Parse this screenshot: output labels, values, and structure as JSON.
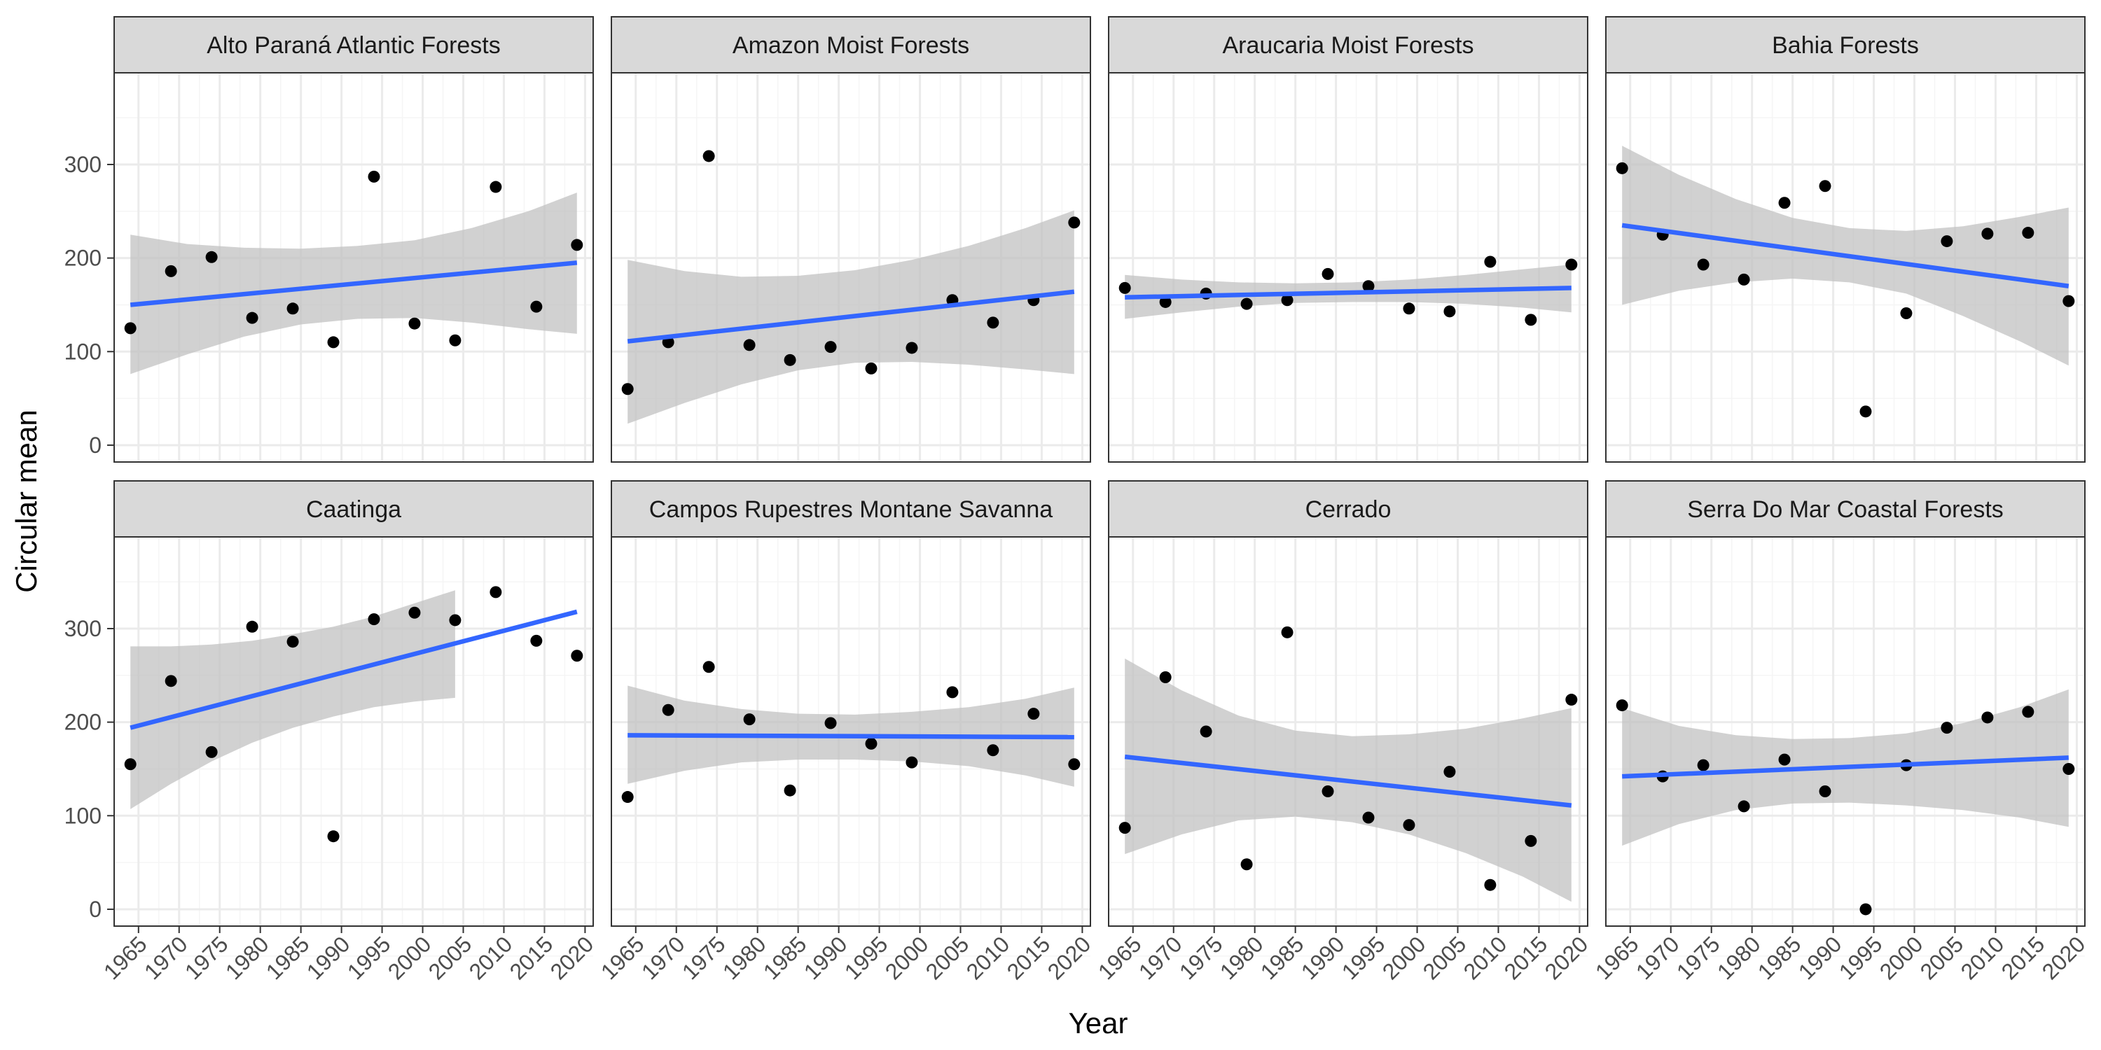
{
  "chart_data": {
    "type": "scatter",
    "xlabel": "Year",
    "ylabel": "Circular mean",
    "xlim": [
      1962,
      2021
    ],
    "ylim": [
      -18,
      398
    ],
    "x_ticks": [
      1965,
      1970,
      1975,
      1980,
      1985,
      1990,
      1995,
      2000,
      2005,
      2010,
      2015,
      2020
    ],
    "y_ticks": [
      0,
      100,
      200,
      300
    ],
    "layout": "facet-wrap 4 columns x 2 rows, shared axes",
    "colors": {
      "points": "#000000",
      "trend_line": "#3366FF",
      "ribbon": "#bfbfbf",
      "strip": "#d9d9d9",
      "grid_major": "#ebebeb",
      "grid_minor": "#f5f5f5",
      "panel_border": "#333333"
    },
    "panels": [
      {
        "name": "Alto Paraná Atlantic Forests",
        "points": [
          [
            1964,
            125
          ],
          [
            1969,
            186
          ],
          [
            1974,
            201
          ],
          [
            1979,
            136
          ],
          [
            1984,
            146
          ],
          [
            1989,
            110
          ],
          [
            1994,
            287
          ],
          [
            1999,
            130
          ],
          [
            2004,
            112
          ],
          [
            2009,
            276
          ],
          [
            2014,
            148
          ],
          [
            2019,
            214
          ]
        ],
        "fit": {
          "x": [
            1964,
            2019
          ],
          "y": [
            150,
            195
          ]
        },
        "ribbon": {
          "x": [
            1964,
            1971,
            1978,
            1985,
            1992,
            1999,
            2006,
            2013,
            2019
          ],
          "lower": [
            76,
            97,
            116,
            129,
            135,
            136,
            131,
            124,
            119
          ],
          "upper": [
            225,
            215,
            211,
            210,
            213,
            219,
            232,
            250,
            270
          ]
        }
      },
      {
        "name": "Amazon Moist Forests",
        "points": [
          [
            1964,
            60
          ],
          [
            1969,
            110
          ],
          [
            1974,
            309
          ],
          [
            1979,
            107
          ],
          [
            1984,
            91
          ],
          [
            1989,
            105
          ],
          [
            1994,
            82
          ],
          [
            1999,
            104
          ],
          [
            2004,
            155
          ],
          [
            2009,
            131
          ],
          [
            2014,
            155
          ],
          [
            2019,
            238
          ]
        ],
        "fit": {
          "x": [
            1964,
            2019
          ],
          "y": [
            111,
            164
          ]
        },
        "ribbon": {
          "x": [
            1964,
            1971,
            1978,
            1985,
            1992,
            1999,
            2006,
            2013,
            2019
          ],
          "lower": [
            23,
            45,
            65,
            80,
            88,
            89,
            86,
            81,
            76
          ],
          "upper": [
            198,
            186,
            180,
            181,
            187,
            198,
            213,
            232,
            251
          ]
        }
      },
      {
        "name": "Araucaria Moist Forests",
        "points": [
          [
            1964,
            168
          ],
          [
            1969,
            153
          ],
          [
            1974,
            162
          ],
          [
            1979,
            151
          ],
          [
            1984,
            155
          ],
          [
            1989,
            183
          ],
          [
            1994,
            170
          ],
          [
            1999,
            146
          ],
          [
            2004,
            143
          ],
          [
            2009,
            196
          ],
          [
            2014,
            134
          ],
          [
            2019,
            193
          ]
        ],
        "fit": {
          "x": [
            1964,
            2019
          ],
          "y": [
            158,
            168
          ]
        },
        "ribbon": {
          "x": [
            1964,
            1971,
            1978,
            1985,
            1992,
            1999,
            2006,
            2013,
            2019
          ],
          "lower": [
            135,
            142,
            148,
            152,
            153,
            153,
            151,
            147,
            142
          ],
          "upper": [
            182,
            177,
            174,
            173,
            174,
            177,
            182,
            188,
            193
          ]
        }
      },
      {
        "name": "Bahia Forests",
        "points": [
          [
            1964,
            296
          ],
          [
            1969,
            225
          ],
          [
            1974,
            193
          ],
          [
            1979,
            177
          ],
          [
            1984,
            259
          ],
          [
            1989,
            277
          ],
          [
            1994,
            36
          ],
          [
            1999,
            141
          ],
          [
            2004,
            218
          ],
          [
            2009,
            226
          ],
          [
            2014,
            227
          ],
          [
            2019,
            154
          ]
        ],
        "fit": {
          "x": [
            1964,
            2019
          ],
          "y": [
            235,
            170
          ]
        },
        "ribbon": {
          "x": [
            1964,
            1971,
            1978,
            1985,
            1992,
            1999,
            2006,
            2013,
            2019
          ],
          "lower": [
            150,
            165,
            174,
            178,
            174,
            162,
            138,
            111,
            85
          ],
          "upper": [
            320,
            289,
            263,
            243,
            232,
            229,
            234,
            244,
            254
          ]
        }
      },
      {
        "name": "Caatinga",
        "points": [
          [
            1964,
            155
          ],
          [
            1969,
            244
          ],
          [
            1974,
            168
          ],
          [
            1979,
            302
          ],
          [
            1984,
            286
          ],
          [
            1989,
            78
          ],
          [
            1994,
            310
          ],
          [
            1999,
            317
          ],
          [
            2004,
            309
          ],
          [
            2009,
            339
          ],
          [
            2014,
            287
          ],
          [
            2019,
            271
          ]
        ],
        "fit": {
          "x": [
            1964,
            2019
          ],
          "y": [
            194,
            318
          ]
        },
        "ribbon": {
          "x": [
            1964,
            1969,
            1974,
            1979,
            1984,
            1989,
            1994,
            1999,
            2004
          ],
          "lower": [
            107,
            134,
            158,
            178,
            194,
            206,
            216,
            222,
            226
          ],
          "upper": [
            281,
            281,
            283,
            287,
            294,
            302,
            313,
            327,
            341
          ]
        }
      },
      {
        "name": "Campos Rupestres Montane Savanna",
        "points": [
          [
            1964,
            120
          ],
          [
            1969,
            213
          ],
          [
            1974,
            259
          ],
          [
            1979,
            203
          ],
          [
            1984,
            127
          ],
          [
            1989,
            199
          ],
          [
            1994,
            177
          ],
          [
            1999,
            157
          ],
          [
            2004,
            232
          ],
          [
            2009,
            170
          ],
          [
            2014,
            209
          ],
          [
            2019,
            155
          ]
        ],
        "fit": {
          "x": [
            1964,
            2019
          ],
          "y": [
            186,
            184
          ]
        },
        "ribbon": {
          "x": [
            1964,
            1971,
            1978,
            1985,
            1992,
            1999,
            2006,
            2013,
            2019
          ],
          "lower": [
            134,
            148,
            157,
            160,
            160,
            158,
            153,
            143,
            131
          ],
          "upper": [
            239,
            223,
            214,
            209,
            208,
            211,
            216,
            225,
            237
          ]
        }
      },
      {
        "name": "Cerrado",
        "points": [
          [
            1964,
            87
          ],
          [
            1969,
            248
          ],
          [
            1974,
            190
          ],
          [
            1979,
            48
          ],
          [
            1984,
            296
          ],
          [
            1989,
            126
          ],
          [
            1994,
            98
          ],
          [
            1999,
            90
          ],
          [
            2004,
            147
          ],
          [
            2009,
            26
          ],
          [
            2014,
            73
          ],
          [
            2019,
            224
          ]
        ],
        "fit": {
          "x": [
            1964,
            2019
          ],
          "y": [
            163,
            111
          ]
        },
        "ribbon": {
          "x": [
            1964,
            1971,
            1978,
            1985,
            1992,
            1999,
            2006,
            2013,
            2019
          ],
          "lower": [
            59,
            80,
            95,
            99,
            93,
            80,
            60,
            35,
            8
          ],
          "upper": [
            268,
            234,
            207,
            191,
            185,
            187,
            193,
            204,
            215
          ]
        }
      },
      {
        "name": "Serra Do Mar Coastal Forests",
        "points": [
          [
            1964,
            218
          ],
          [
            1969,
            142
          ],
          [
            1974,
            154
          ],
          [
            1979,
            110
          ],
          [
            1984,
            160
          ],
          [
            1989,
            126
          ],
          [
            1994,
            0
          ],
          [
            1999,
            154
          ],
          [
            2004,
            194
          ],
          [
            2009,
            205
          ],
          [
            2014,
            211
          ],
          [
            2019,
            150
          ]
        ],
        "fit": {
          "x": [
            1964,
            2019
          ],
          "y": [
            142,
            162
          ]
        },
        "ribbon": {
          "x": [
            1964,
            1971,
            1978,
            1985,
            1992,
            1999,
            2006,
            2013,
            2019
          ],
          "lower": [
            68,
            91,
            106,
            113,
            114,
            111,
            106,
            98,
            88
          ],
          "upper": [
            215,
            196,
            186,
            182,
            183,
            188,
            199,
            216,
            235
          ]
        }
      }
    ]
  }
}
